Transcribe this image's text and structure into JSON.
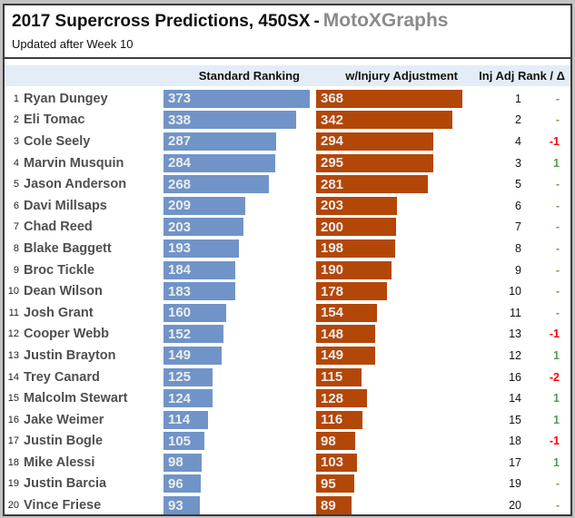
{
  "header": {
    "title": "2017 Supercross Predictions, 450SX",
    "title_separator": "-",
    "brand": "MotoXGraphs",
    "subtitle": "Updated after Week 10"
  },
  "columns": {
    "standard": "Standard Ranking",
    "injury": "w/Injury Adjustment",
    "rank_delta": "Inj Adj Rank / Δ"
  },
  "colors": {
    "standard_bar": "#7094C8",
    "injury_bar": "#B34708",
    "delta_negative": "#FF0000",
    "delta_positive": "#4E9E50",
    "delta_dash": "#7EA050",
    "header_band": "#E4EDF7"
  },
  "rows": [
    {
      "rank": 1,
      "name": "Ryan Dungey",
      "standard": 373,
      "injury": 368,
      "inj_rank": 1,
      "delta": "-"
    },
    {
      "rank": 2,
      "name": "Eli Tomac",
      "standard": 338,
      "injury": 342,
      "inj_rank": 2,
      "delta": "-"
    },
    {
      "rank": 3,
      "name": "Cole Seely",
      "standard": 287,
      "injury": 294,
      "inj_rank": 4,
      "delta": "-1"
    },
    {
      "rank": 4,
      "name": "Marvin Musquin",
      "standard": 284,
      "injury": 295,
      "inj_rank": 3,
      "delta": "1"
    },
    {
      "rank": 5,
      "name": "Jason Anderson",
      "standard": 268,
      "injury": 281,
      "inj_rank": 5,
      "delta": "-"
    },
    {
      "rank": 6,
      "name": "Davi Millsaps",
      "standard": 209,
      "injury": 203,
      "inj_rank": 6,
      "delta": "-"
    },
    {
      "rank": 7,
      "name": "Chad Reed",
      "standard": 203,
      "injury": 200,
      "inj_rank": 7,
      "delta": "-"
    },
    {
      "rank": 8,
      "name": "Blake Baggett",
      "standard": 193,
      "injury": 198,
      "inj_rank": 8,
      "delta": "-"
    },
    {
      "rank": 9,
      "name": "Broc Tickle",
      "standard": 184,
      "injury": 190,
      "inj_rank": 9,
      "delta": "-"
    },
    {
      "rank": 10,
      "name": "Dean Wilson",
      "standard": 183,
      "injury": 178,
      "inj_rank": 10,
      "delta": "-"
    },
    {
      "rank": 11,
      "name": "Josh Grant",
      "standard": 160,
      "injury": 154,
      "inj_rank": 11,
      "delta": "-"
    },
    {
      "rank": 12,
      "name": "Cooper Webb",
      "standard": 152,
      "injury": 148,
      "inj_rank": 13,
      "delta": "-1"
    },
    {
      "rank": 13,
      "name": "Justin Brayton",
      "standard": 149,
      "injury": 149,
      "inj_rank": 12,
      "delta": "1"
    },
    {
      "rank": 14,
      "name": "Trey Canard",
      "standard": 125,
      "injury": 115,
      "inj_rank": 16,
      "delta": "-2"
    },
    {
      "rank": 15,
      "name": "Malcolm Stewart",
      "standard": 124,
      "injury": 128,
      "inj_rank": 14,
      "delta": "1"
    },
    {
      "rank": 16,
      "name": "Jake Weimer",
      "standard": 114,
      "injury": 116,
      "inj_rank": 15,
      "delta": "1"
    },
    {
      "rank": 17,
      "name": "Justin Bogle",
      "standard": 105,
      "injury": 98,
      "inj_rank": 18,
      "delta": "-1"
    },
    {
      "rank": 18,
      "name": "Mike Alessi",
      "standard": 98,
      "injury": 103,
      "inj_rank": 17,
      "delta": "1"
    },
    {
      "rank": 19,
      "name": "Justin Barcia",
      "standard": 96,
      "injury": 95,
      "inj_rank": 19,
      "delta": "-"
    },
    {
      "rank": 20,
      "name": "Vince Friese",
      "standard": 93,
      "injury": 89,
      "inj_rank": 20,
      "delta": "-"
    }
  ],
  "chart_data": {
    "type": "bar",
    "orientation": "horizontal",
    "title": "2017 Supercross Predictions, 450SX - MotoXGraphs",
    "subtitle": "Updated after Week 10",
    "categories": [
      "Ryan Dungey",
      "Eli Tomac",
      "Cole Seely",
      "Marvin Musquin",
      "Jason Anderson",
      "Davi Millsaps",
      "Chad Reed",
      "Blake Baggett",
      "Broc Tickle",
      "Dean Wilson",
      "Josh Grant",
      "Cooper Webb",
      "Justin Brayton",
      "Trey Canard",
      "Malcolm Stewart",
      "Jake Weimer",
      "Justin Bogle",
      "Mike Alessi",
      "Justin Barcia",
      "Vince Friese"
    ],
    "standard_rank": [
      1,
      2,
      3,
      4,
      5,
      6,
      7,
      8,
      9,
      10,
      11,
      12,
      13,
      14,
      15,
      16,
      17,
      18,
      19,
      20
    ],
    "series": [
      {
        "name": "Standard Ranking",
        "color": "#7094C8",
        "values": [
          373,
          338,
          287,
          284,
          268,
          209,
          203,
          193,
          184,
          183,
          160,
          152,
          149,
          125,
          124,
          114,
          105,
          98,
          96,
          93
        ]
      },
      {
        "name": "w/Injury Adjustment",
        "color": "#B34708",
        "values": [
          368,
          342,
          294,
          295,
          281,
          203,
          200,
          198,
          190,
          178,
          154,
          148,
          149,
          115,
          128,
          116,
          98,
          103,
          95,
          89
        ]
      }
    ],
    "inj_adj_rank": [
      1,
      2,
      4,
      3,
      5,
      6,
      7,
      8,
      9,
      10,
      11,
      13,
      12,
      16,
      14,
      15,
      18,
      17,
      19,
      20
    ],
    "delta": [
      "-",
      "-",
      "-1",
      "1",
      "-",
      "-",
      "-",
      "-",
      "-",
      "-",
      "-",
      "-1",
      "1",
      "-2",
      "1",
      "1",
      "-1",
      "1",
      "-",
      "-"
    ],
    "value_labels": "shown inside bars",
    "legend_position": "column headers",
    "grid": false,
    "xlim": [
      0,
      373
    ]
  }
}
